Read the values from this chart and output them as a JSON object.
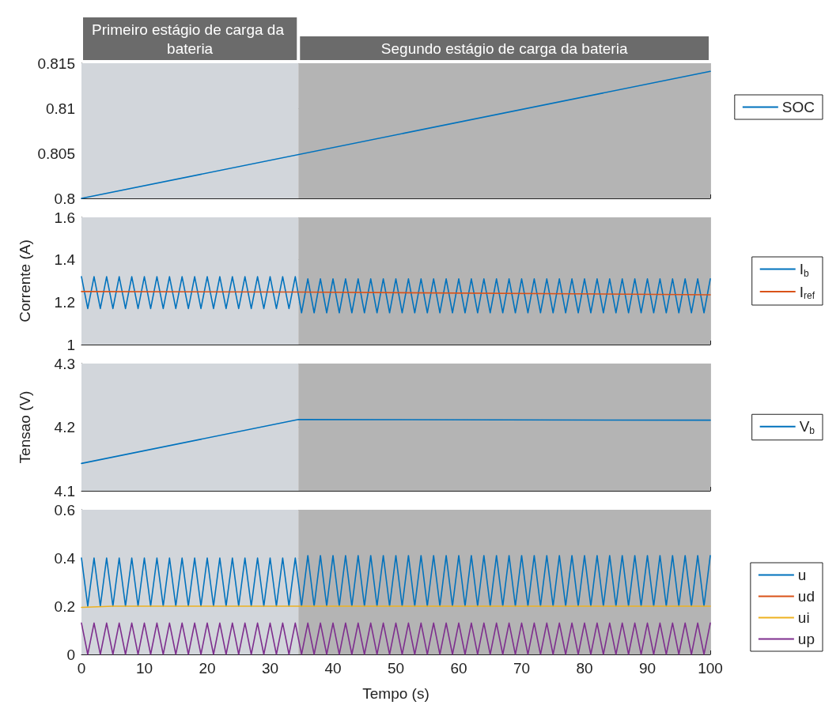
{
  "chart_data": [
    {
      "type": "line",
      "xlim": [
        0,
        100
      ],
      "xticks": [
        0,
        10,
        20,
        30,
        40,
        50,
        60,
        70,
        80,
        90,
        100
      ],
      "ylim": [
        0.8,
        0.815
      ],
      "yticks": [
        0.8,
        0.805,
        0.81,
        0.815
      ],
      "grid": true,
      "legend": "right",
      "tick_labels": "y",
      "bands": [
        {
          "axis": "x",
          "from": 0,
          "to": 34.5,
          "label": "Primeiro estágio de carga da bateria",
          "color": "#d2d6db"
        },
        {
          "axis": "x",
          "from": 34.5,
          "to": 100,
          "label": "Segundo estágio de carga da bateria",
          "color": "#b4b4b4"
        }
      ],
      "series": [
        {
          "name": "SOC",
          "color": "#0072bd",
          "x": [
            0,
            100
          ],
          "values": [
            0.8,
            0.8141
          ]
        }
      ]
    },
    {
      "type": "line",
      "x": [
        0,
        1,
        2,
        3,
        4,
        5,
        6,
        7,
        8,
        9,
        10,
        11,
        12,
        13,
        14,
        15,
        16,
        17,
        18,
        19,
        20,
        21,
        22,
        23,
        24,
        25,
        26,
        27,
        28,
        29,
        30,
        31,
        32,
        33,
        34,
        35,
        36,
        37,
        38,
        39,
        40,
        41,
        42,
        43,
        44,
        45,
        46,
        47,
        48,
        49,
        50,
        51,
        52,
        53,
        54,
        55,
        56,
        57,
        58,
        59,
        60,
        61,
        62,
        63,
        64,
        65,
        66,
        67,
        68,
        69,
        70,
        71,
        72,
        73,
        74,
        75,
        76,
        77,
        78,
        79,
        80,
        81,
        82,
        83,
        84,
        85,
        86,
        87,
        88,
        89,
        90,
        91,
        92,
        93,
        94,
        95,
        96,
        97,
        98,
        99,
        100
      ],
      "xlim": [
        0,
        100
      ],
      "xticks": [
        0,
        10,
        20,
        30,
        40,
        50,
        60,
        70,
        80,
        90,
        100
      ],
      "ylim": [
        1,
        1.6
      ],
      "yticks": [
        1,
        1.2,
        1.4,
        1.6
      ],
      "ylabel": "Corrente (A)",
      "grid": true,
      "legend": "right",
      "tick_labels": "y",
      "bands": [
        {
          "axis": "x",
          "from": 0,
          "to": 34.5,
          "color": "#d2d6db"
        },
        {
          "axis": "x",
          "from": 34.5,
          "to": 100,
          "color": "#b4b4b4"
        }
      ],
      "series": [
        {
          "name": "I$_{b}$",
          "color": "#0072bd",
          "values": [
            1.32,
            1.17,
            1.32,
            1.17,
            1.32,
            1.17,
            1.32,
            1.17,
            1.32,
            1.17,
            1.32,
            1.17,
            1.32,
            1.17,
            1.32,
            1.17,
            1.32,
            1.17,
            1.32,
            1.17,
            1.32,
            1.17,
            1.32,
            1.17,
            1.32,
            1.17,
            1.32,
            1.17,
            1.32,
            1.17,
            1.32,
            1.17,
            1.32,
            1.17,
            1.32,
            1.15,
            1.31,
            1.15,
            1.31,
            1.15,
            1.31,
            1.15,
            1.31,
            1.15,
            1.31,
            1.15,
            1.31,
            1.15,
            1.31,
            1.15,
            1.31,
            1.15,
            1.31,
            1.15,
            1.31,
            1.15,
            1.31,
            1.15,
            1.31,
            1.15,
            1.31,
            1.15,
            1.31,
            1.15,
            1.31,
            1.15,
            1.31,
            1.15,
            1.31,
            1.15,
            1.31,
            1.15,
            1.31,
            1.15,
            1.31,
            1.15,
            1.31,
            1.15,
            1.31,
            1.15,
            1.31,
            1.15,
            1.31,
            1.15,
            1.31,
            1.15,
            1.31,
            1.15,
            1.31,
            1.15,
            1.31,
            1.15,
            1.31,
            1.15,
            1.31,
            1.15,
            1.31,
            1.15,
            1.31,
            1.15,
            1.31
          ]
        },
        {
          "name": "I$_{ref}$",
          "color": "#d95319",
          "x": [
            0,
            34.5,
            100
          ],
          "values": [
            1.25,
            1.248,
            1.235
          ]
        }
      ]
    },
    {
      "type": "line",
      "x": [
        0,
        34.5,
        100
      ],
      "xlim": [
        0,
        100
      ],
      "xticks": [
        0,
        10,
        20,
        30,
        40,
        50,
        60,
        70,
        80,
        90,
        100
      ],
      "ylim": [
        4.1,
        4.3
      ],
      "yticks": [
        4.1,
        4.2,
        4.3
      ],
      "ylabel": "Tensao (V)",
      "grid": true,
      "legend": "right",
      "tick_labels": "y",
      "bands": [
        {
          "axis": "x",
          "from": 0,
          "to": 34.5,
          "color": "#d2d6db"
        },
        {
          "axis": "x",
          "from": 34.5,
          "to": 100,
          "color": "#b4b4b4"
        }
      ],
      "series": [
        {
          "name": "V$_{b}$",
          "color": "#0072bd",
          "values": [
            4.143,
            4.212,
            4.211
          ]
        }
      ]
    },
    {
      "type": "line",
      "x": [
        0,
        1,
        2,
        3,
        4,
        5,
        6,
        7,
        8,
        9,
        10,
        11,
        12,
        13,
        14,
        15,
        16,
        17,
        18,
        19,
        20,
        21,
        22,
        23,
        24,
        25,
        26,
        27,
        28,
        29,
        30,
        31,
        32,
        33,
        34,
        35,
        36,
        37,
        38,
        39,
        40,
        41,
        42,
        43,
        44,
        45,
        46,
        47,
        48,
        49,
        50,
        51,
        52,
        53,
        54,
        55,
        56,
        57,
        58,
        59,
        60,
        61,
        62,
        63,
        64,
        65,
        66,
        67,
        68,
        69,
        70,
        71,
        72,
        73,
        74,
        75,
        76,
        77,
        78,
        79,
        80,
        81,
        82,
        83,
        84,
        85,
        86,
        87,
        88,
        89,
        90,
        91,
        92,
        93,
        94,
        95,
        96,
        97,
        98,
        99,
        100
      ],
      "xlim": [
        0,
        100
      ],
      "xticks": [
        0,
        10,
        20,
        30,
        40,
        50,
        60,
        70,
        80,
        90,
        100
      ],
      "ylim": [
        0,
        0.6
      ],
      "yticks": [
        0,
        0.2,
        0.4,
        0.6
      ],
      "xlabel": "Tempo (s)",
      "grid": true,
      "legend": "right",
      "bands": [
        {
          "axis": "x",
          "from": 0,
          "to": 34.5,
          "color": "#d2d6db"
        },
        {
          "axis": "x",
          "from": 34.5,
          "to": 100,
          "color": "#b4b4b4"
        }
      ],
      "series": [
        {
          "name": "u",
          "color": "#0072bd",
          "values": [
            0.4,
            0.2,
            0.4,
            0.2,
            0.4,
            0.2,
            0.4,
            0.2,
            0.4,
            0.2,
            0.4,
            0.2,
            0.4,
            0.2,
            0.4,
            0.2,
            0.4,
            0.2,
            0.4,
            0.2,
            0.4,
            0.2,
            0.4,
            0.2,
            0.4,
            0.2,
            0.4,
            0.2,
            0.4,
            0.2,
            0.4,
            0.2,
            0.4,
            0.2,
            0.4,
            0.2,
            0.41,
            0.2,
            0.41,
            0.2,
            0.41,
            0.2,
            0.41,
            0.2,
            0.41,
            0.2,
            0.41,
            0.2,
            0.41,
            0.2,
            0.41,
            0.2,
            0.41,
            0.2,
            0.41,
            0.2,
            0.41,
            0.2,
            0.41,
            0.2,
            0.41,
            0.2,
            0.41,
            0.2,
            0.41,
            0.2,
            0.41,
            0.2,
            0.41,
            0.2,
            0.41,
            0.2,
            0.41,
            0.2,
            0.41,
            0.2,
            0.41,
            0.2,
            0.41,
            0.2,
            0.41,
            0.2,
            0.41,
            0.2,
            0.41,
            0.2,
            0.41,
            0.2,
            0.41,
            0.2,
            0.41,
            0.2,
            0.41,
            0.2,
            0.41,
            0.2,
            0.41,
            0.2,
            0.41,
            0.2,
            0.41
          ]
        },
        {
          "name": "ud",
          "color": "#d95319",
          "values": [
            null,
            null,
            null,
            null,
            null,
            null,
            null,
            null,
            null,
            null,
            null,
            null,
            null,
            null,
            null,
            null,
            null,
            null,
            null,
            null,
            null,
            null,
            null,
            null,
            null,
            null,
            null,
            null,
            null,
            null,
            null,
            null,
            null,
            null,
            null,
            null,
            null,
            null,
            null,
            null,
            null,
            null,
            null,
            null,
            null,
            null,
            null,
            null,
            null,
            null,
            null,
            null,
            null,
            null,
            null,
            null,
            null,
            null,
            null,
            null,
            null,
            null,
            null,
            null,
            null,
            null,
            null,
            null,
            null,
            null,
            null,
            null,
            null,
            null,
            null,
            null,
            null,
            null,
            null,
            null,
            null,
            null,
            null,
            null,
            null,
            null,
            null,
            null,
            null,
            null,
            null,
            null,
            null,
            null,
            null,
            null,
            null,
            null,
            null,
            null,
            null
          ]
        },
        {
          "name": "ui",
          "color": "#edb120",
          "x": [
            0,
            5,
            100
          ],
          "values": [
            0.195,
            0.2,
            0.2
          ]
        },
        {
          "name": "up",
          "color": "#7e2f8e",
          "values": [
            0.13,
            0,
            0.13,
            0,
            0.13,
            0,
            0.13,
            0,
            0.13,
            0,
            0.13,
            0,
            0.13,
            0,
            0.13,
            0,
            0.13,
            0,
            0.13,
            0,
            0.13,
            0,
            0.13,
            0,
            0.13,
            0,
            0.13,
            0,
            0.13,
            0,
            0.13,
            0,
            0.13,
            0,
            0.13,
            0,
            0.13,
            0,
            0.13,
            0,
            0.13,
            0,
            0.13,
            0,
            0.13,
            0,
            0.13,
            0,
            0.13,
            0,
            0.13,
            0,
            0.13,
            0,
            0.13,
            0,
            0.13,
            0,
            0.13,
            0,
            0.13,
            0,
            0.13,
            0,
            0.13,
            0,
            0.13,
            0,
            0.13,
            0,
            0.13,
            0,
            0.13,
            0,
            0.13,
            0,
            0.13,
            0,
            0.13,
            0,
            0.13,
            0,
            0.13,
            0,
            0.13,
            0,
            0.13,
            0,
            0.13,
            0,
            0.13,
            0,
            0.13,
            0,
            0.13,
            0,
            0.13,
            0,
            0.13,
            0,
            0.13
          ]
        }
      ]
    }
  ]
}
